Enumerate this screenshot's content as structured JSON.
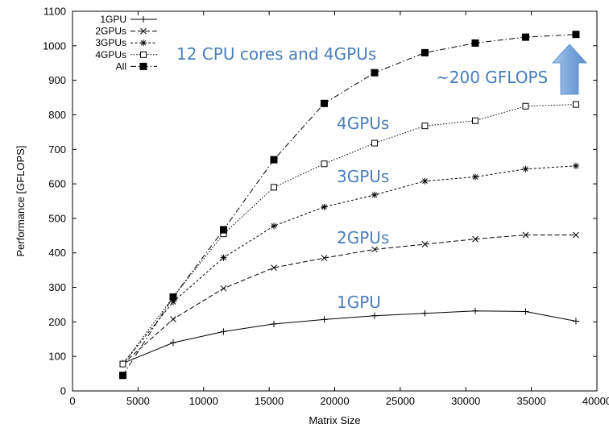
{
  "chart_data": {
    "type": "line",
    "xlabel": "Matrix Size",
    "ylabel": "Performance [GFLOPS]",
    "xlim": [
      0,
      40000
    ],
    "ylim": [
      0,
      1100
    ],
    "xticks": [
      0,
      5000,
      10000,
      15000,
      20000,
      25000,
      30000,
      35000,
      40000
    ],
    "yticks": [
      0,
      100,
      200,
      300,
      400,
      500,
      600,
      700,
      800,
      900,
      1000,
      1100
    ],
    "legend_position": "top-left",
    "x": [
      3840,
      7680,
      11520,
      15360,
      19200,
      23040,
      26880,
      30720,
      34560,
      38400
    ],
    "series": [
      {
        "name": "1GPU",
        "marker": "plus",
        "dash": "solid",
        "values": [
          80,
          140,
          172,
          194,
          207,
          218,
          225,
          232,
          230,
          202
        ]
      },
      {
        "name": "2GPUs",
        "marker": "cross",
        "dash": "dashed",
        "values": [
          78,
          208,
          297,
          357,
          385,
          410,
          425,
          440,
          452,
          452
        ]
      },
      {
        "name": "3GPUs",
        "marker": "star",
        "dash": "short-dashed",
        "values": [
          78,
          258,
          386,
          478,
          533,
          568,
          608,
          620,
          643,
          652
        ]
      },
      {
        "name": "4GPUs",
        "marker": "open-square",
        "dash": "dotted",
        "values": [
          78,
          272,
          455,
          590,
          658,
          718,
          768,
          783,
          825,
          830
        ]
      },
      {
        "name": "All",
        "marker": "filled-square",
        "dash": "dash-dot",
        "values": [
          45,
          272,
          467,
          670,
          833,
          922,
          980,
          1008,
          1025,
          1033
        ]
      }
    ],
    "annotations": [
      {
        "text": "12 CPU cores and 4GPUs",
        "color": "#4a7ebb"
      },
      {
        "text": "~200 GFLOPS",
        "color": "#4a7ebb"
      },
      {
        "text": "4GPUs",
        "color": "#4a7ebb"
      },
      {
        "text": "3GPUs",
        "color": "#4a7ebb"
      },
      {
        "text": "2GPUs",
        "color": "#4a7ebb"
      },
      {
        "text": "1GPU",
        "color": "#4a7ebb"
      }
    ],
    "arrow": {
      "direction": "up",
      "color": "#7aa7dc"
    }
  }
}
